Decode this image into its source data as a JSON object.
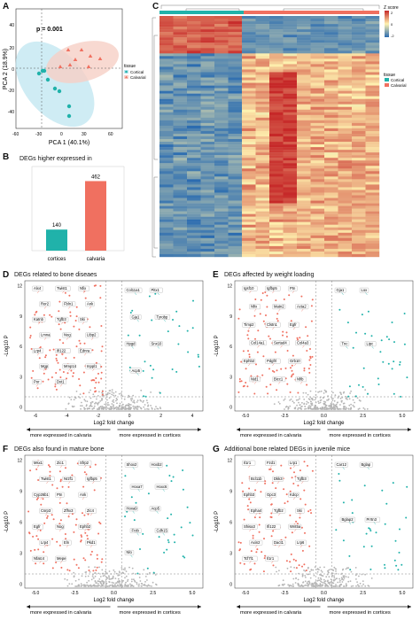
{
  "panels": {
    "A": {
      "letter": "A",
      "pvalue": "p = 0.001",
      "xlabel": "PCA 1 (40.1%)",
      "ylabel": "PCA 2 (18.9%)",
      "xticks": [
        "-60",
        "-30",
        "0",
        "30",
        "60"
      ],
      "yticks": [
        "40",
        "20",
        "0",
        "-20",
        "-40"
      ],
      "legend_title": "tissue",
      "legend": [
        "Cortical",
        "Calvarial"
      ]
    },
    "B": {
      "letter": "B",
      "title": "DEGs higher expressed in",
      "categories": [
        "cortices",
        "calvaria"
      ],
      "values": [
        140,
        462
      ]
    },
    "C": {
      "letter": "C",
      "legend_title": "Z score",
      "legend_ticks": [
        "2",
        "0",
        "-2"
      ],
      "tissue_title": "tissue",
      "tissue_legend": [
        "Cortical",
        "Calvarial"
      ]
    },
    "D": {
      "letter": "D",
      "title": "DEGs related to bone diseaes",
      "xlabel": "Log2 fold change",
      "ylabel": "-Log10 P",
      "xticks": [
        "-6",
        "-4",
        "-2",
        "0",
        "2",
        "4"
      ],
      "yticks": [
        "12",
        "9",
        "6",
        "3",
        "0"
      ],
      "arrow_left": "more expressed in calvaria",
      "arrow_right": "more expressed in cortices",
      "genes_red": [
        "Alx4",
        "Twist1",
        "Nfix",
        "Ror2",
        "Fbln1",
        "Ank",
        "Katnb",
        "Tgfb3",
        "Ski",
        "Lmna",
        "Nog",
        "Ltbp2",
        "Lrp4",
        "Ifi122",
        "Ednra",
        "Mgp",
        "Mmp14",
        "Inppl1",
        "Por",
        "Dxt1"
      ],
      "genes_blue": [
        "Col11a1",
        "Pitx1",
        "Gja1",
        "Tyrobp",
        "Hpgd",
        "Snx10",
        "Acp5"
      ]
    },
    "E": {
      "letter": "E",
      "title": "DEGs affected by weight loading",
      "xlabel": "Log2 fold change",
      "ylabel": "-Log10 P",
      "xticks": [
        "-5.0",
        "-2.5",
        "0.0",
        "2.5",
        "5.0"
      ],
      "yticks": [
        "12",
        "9",
        "6",
        "3",
        "0"
      ],
      "arrow_left": "more expressed in calvaria",
      "arrow_right": "more expressed in cortices",
      "genes_red": [
        "Igsf10",
        "Igfbp5",
        "Ptn",
        "Nfix",
        "Matn2",
        "Acta2",
        "Timp2",
        "Clstn1",
        "Egfr",
        "Col14a1",
        "Sertad4",
        "Col4a3",
        "Ephb2",
        "Pdgfrl",
        "Grb10",
        "Nid1",
        "Bicc1",
        "Nfib"
      ],
      "genes_blue": [
        "Gja1",
        "Lox",
        "Tnc",
        "Lipc"
      ]
    },
    "F": {
      "letter": "F",
      "title": "DEGs also found in mature bone",
      "xlabel": "Log2 fold change",
      "ylabel": "-Log10 P",
      "xticks": [
        "-5.0",
        "-2.5",
        "0.0",
        "2.5",
        "5.0"
      ],
      "yticks": [
        "12",
        "9",
        "6",
        "3",
        "0"
      ],
      "arrow_left": "more expressed in calvaria",
      "arrow_right": "more expressed in cortices",
      "genes_red": [
        "Msx1",
        "Zic1",
        "Sfrp2",
        "Twist1",
        "Nr2f1",
        "Igfbp5",
        "Cyp26b1",
        "Ptn",
        "Ank",
        "Csrp3",
        "Zfhx3",
        "Zic4",
        "Egfr",
        "Nog",
        "Ephb2",
        "Lrp4",
        "Eln",
        "Pkd1",
        "Nfatc4",
        "Mepe"
      ],
      "genes_blue": [
        "Shox2",
        "Hoxb2",
        "Hoxa7",
        "Hoxc6",
        "Hoxa9",
        "Acp5",
        "Frzb",
        "Cdh15",
        "Nlo"
      ]
    },
    "G": {
      "letter": "G",
      "title": "Additional bone related DEGs in juvenile mice",
      "xlabel": "Log2 fold change",
      "ylabel": "-Log10 P",
      "xticks": [
        "-5.0",
        "-2.5",
        "0.0",
        "2.5",
        "5.0"
      ],
      "yticks": [
        "12",
        "9",
        "6",
        "3",
        "0"
      ],
      "arrow_left": "more expressed in calvaria",
      "arrow_right": "more expressed in cortices",
      "genes_red": [
        "Il1r1",
        "Fzd1",
        "Lrp1",
        "Bcl11b",
        "Dkk3",
        "Tgfb3",
        "Ephb3",
        "Gpc3",
        "Kdcp",
        "Epha4",
        "Tgfb2",
        "Ski",
        "Shisa3",
        "Ifi122",
        "Wnt5a",
        "Axin2",
        "Dact1",
        "Lrp6",
        "Tcf7l1",
        "Il1r1"
      ],
      "genes_blue": [
        "Car12",
        "Bglap",
        "Bglap2",
        "Prrtn3"
      ]
    }
  },
  "colors": {
    "cortical": "#20b2aa",
    "calvarial": "#f07060",
    "cortical_fill": "#bfe6f0",
    "calvarial_fill": "#f6cfc6"
  }
}
